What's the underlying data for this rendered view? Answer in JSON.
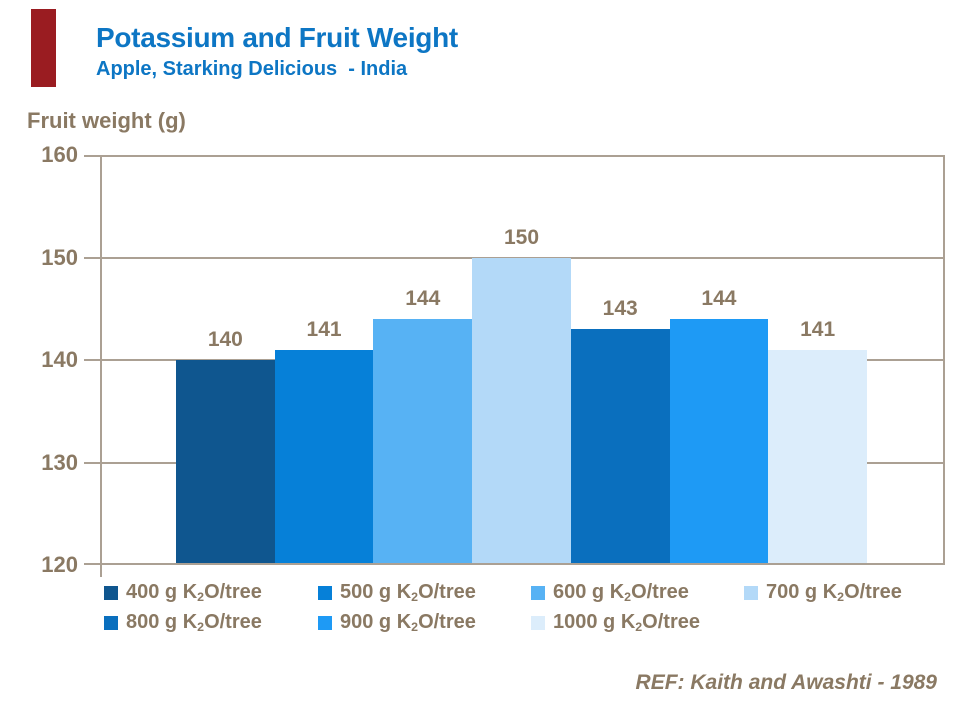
{
  "header": {
    "title": "Potassium and Fruit Weight",
    "subtitle": "Apple, Starking Delicious  - India"
  },
  "colors": {
    "title_blue": "#0D76C4",
    "text_brown": "#8A7963",
    "frame_tan": "#ABA093",
    "accent_red": "#9A1C21"
  },
  "chart_data": {
    "type": "bar",
    "title": "Potassium and Fruit Weight",
    "subtitle": "Apple, Starking Delicious - India",
    "ylabel": "Fruit weight (g)",
    "xlabel": "",
    "ylim": [
      120,
      160
    ],
    "yticks": [
      160,
      150,
      140,
      130,
      120
    ],
    "grid": true,
    "legend_position": "bottom",
    "categories": [
      "400 g K2O/tree",
      "500 g K2O/tree",
      "600 g K2O/tree",
      "700 g K2O/tree",
      "800 g K2O/tree",
      "900 g K2O/tree",
      "1000 g K2O/tree"
    ],
    "values": [
      140,
      141,
      144,
      150,
      143,
      144,
      141
    ],
    "series": [
      {
        "label_qty": "400",
        "name": "400 g K2O/tree",
        "value": 140,
        "color": "#0F568F"
      },
      {
        "label_qty": "500",
        "name": "500 g K2O/tree",
        "value": 141,
        "color": "#0680D8"
      },
      {
        "label_qty": "600",
        "name": "600 g K2O/tree",
        "value": 144,
        "color": "#57B2F4"
      },
      {
        "label_qty": "700",
        "name": "700 g K2O/tree",
        "value": 150,
        "color": "#B3D9F8"
      },
      {
        "label_qty": "800",
        "name": "800 g K2O/tree",
        "value": 143,
        "color": "#0A6FBE"
      },
      {
        "label_qty": "900",
        "name": "900 g K2O/tree",
        "value": 144,
        "color": "#1E9AF5"
      },
      {
        "label_qty": "1000",
        "name": "1000 g K2O/tree",
        "value": 141,
        "color": "#DCEDFB"
      }
    ],
    "legend_unit": {
      "prefix": "g K",
      "sub": "2",
      "suffix": "O/tree"
    }
  },
  "footer": {
    "reference": "REF: Kaith and Awashti - 1989"
  }
}
